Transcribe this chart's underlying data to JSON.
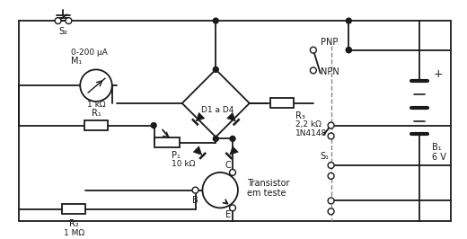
{
  "bg_color": "#ffffff",
  "line_color": "#1a1a1a",
  "lw": 1.3,
  "labels": {
    "S2": "S₂",
    "M1": "M₁",
    "M1_range": "0-200 μA",
    "R1": "R₁",
    "R1_val": "1 kΩ",
    "R2": "R₂",
    "R2_val": "1 MΩ",
    "P1": "P₁",
    "P1_val": "10 kΩ",
    "D1D4": "D1 a D4",
    "diode_type": "1N4148",
    "R3": "R₃",
    "R3_val": "2,2 kΩ",
    "PNP": "PNP",
    "NPN": "NPN",
    "S1": "S₁",
    "B1": "B₁",
    "B1_val": "6 V",
    "transistor_label": "Transistor\nem teste",
    "B_label": "B",
    "C_label": "C",
    "E_label": "E",
    "plus": "+"
  }
}
